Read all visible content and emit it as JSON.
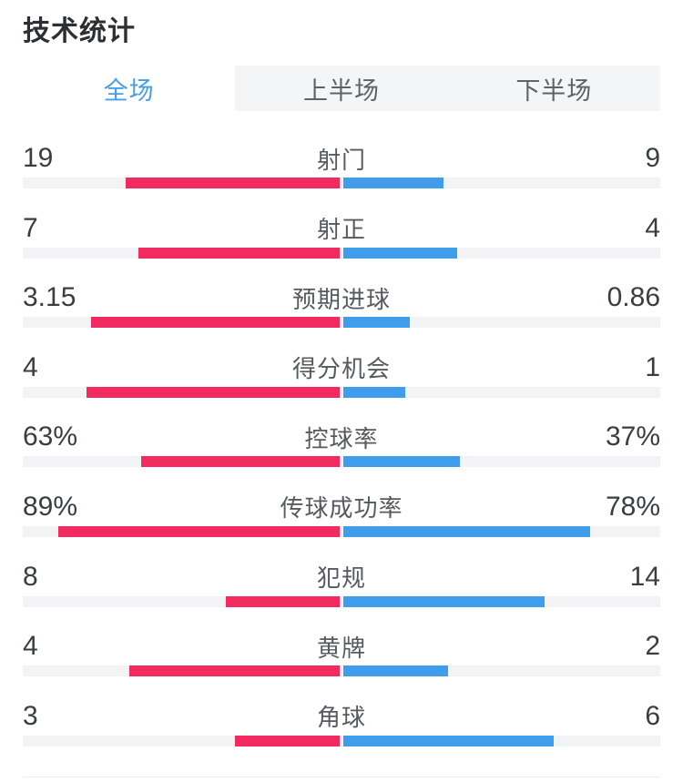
{
  "page": {
    "title": "技术统计"
  },
  "colors": {
    "home_bar": "#f12b60",
    "away_bar": "#3f9deb",
    "bar_track": "#f2f3f5",
    "tab_bar_bg": "#f4f5f6",
    "tab_active_text": "#459fe6",
    "tab_inactive_text": "#5f6368"
  },
  "tabs": {
    "items": [
      {
        "name": "full-match",
        "label": "全场",
        "active": true
      },
      {
        "name": "first-half",
        "label": "上半场",
        "active": false
      },
      {
        "name": "second-half",
        "label": "下半场",
        "active": false
      }
    ]
  },
  "chart_data": {
    "type": "bar",
    "note": "head-to-head football match stats, home (red, left) vs away (blue, right)",
    "rows": [
      {
        "name": "shots",
        "label": "射门",
        "home": "19",
        "away": "9"
      },
      {
        "name": "shots-on-target",
        "label": "射正",
        "home": "7",
        "away": "4"
      },
      {
        "name": "expected-goals",
        "label": "预期进球",
        "home": "3.15",
        "away": "0.86"
      },
      {
        "name": "big-chances",
        "label": "得分机会",
        "home": "4",
        "away": "1"
      },
      {
        "name": "possession",
        "label": "控球率",
        "home": "63%",
        "away": "37%"
      },
      {
        "name": "pass-accuracy",
        "label": "传球成功率",
        "home": "89%",
        "away": "78%"
      },
      {
        "name": "fouls",
        "label": "犯规",
        "home": "8",
        "away": "14"
      },
      {
        "name": "yellow-cards",
        "label": "黄牌",
        "home": "4",
        "away": "2"
      },
      {
        "name": "corners",
        "label": "角球",
        "home": "3",
        "away": "6"
      }
    ]
  }
}
